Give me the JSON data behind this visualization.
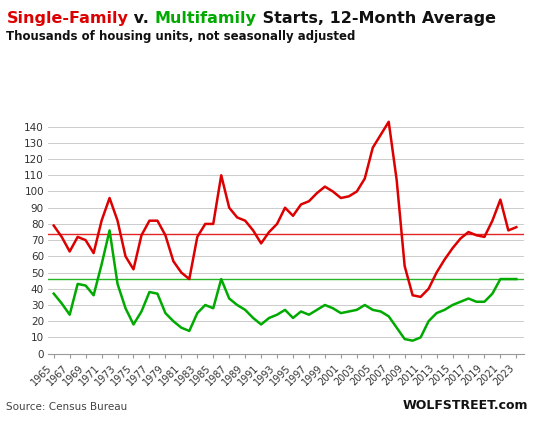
{
  "title_parts": [
    {
      "text": "Single-Family",
      "color": "#dd0000"
    },
    {
      "text": " v. ",
      "color": "#111111"
    },
    {
      "text": "Multifamily",
      "color": "#00aa00"
    },
    {
      "text": " Starts, 12-Month Average",
      "color": "#111111"
    }
  ],
  "subtitle": "Thousands of housing units, not seasonally adjusted",
  "source": "Source: Census Bureau",
  "watermark": "WOLFSTREET.com",
  "sf_color": "#dd0000",
  "mf_color": "#00aa00",
  "hline_sf_color": "#dd0000",
  "hline_mf_color": "#00aa00",
  "hline_sf_y": 74.0,
  "hline_mf_y": 46.0,
  "ylim": [
    0,
    148
  ],
  "yticks": [
    0,
    10,
    20,
    30,
    40,
    50,
    60,
    70,
    80,
    90,
    100,
    110,
    120,
    130,
    140
  ],
  "xlim": [
    1964.3,
    2024.0
  ],
  "years": [
    1965,
    1966,
    1967,
    1968,
    1969,
    1970,
    1971,
    1972,
    1973,
    1974,
    1975,
    1976,
    1977,
    1978,
    1979,
    1980,
    1981,
    1982,
    1983,
    1984,
    1985,
    1986,
    1987,
    1988,
    1989,
    1990,
    1991,
    1992,
    1993,
    1994,
    1995,
    1996,
    1997,
    1998,
    1999,
    2000,
    2001,
    2002,
    2003,
    2004,
    2005,
    2006,
    2007,
    2008,
    2009,
    2010,
    2011,
    2012,
    2013,
    2014,
    2015,
    2016,
    2017,
    2018,
    2019,
    2020,
    2021,
    2022,
    2023
  ],
  "single_family": [
    79,
    72,
    63,
    72,
    70,
    62,
    82,
    96,
    82,
    60,
    52,
    73,
    82,
    82,
    73,
    57,
    50,
    46,
    72,
    80,
    80,
    110,
    90,
    84,
    82,
    76,
    68,
    75,
    80,
    90,
    85,
    92,
    94,
    99,
    103,
    100,
    96,
    97,
    100,
    108,
    127,
    135,
    143,
    107,
    54,
    36,
    35,
    40,
    50,
    58,
    65,
    71,
    75,
    73,
    72,
    82,
    95,
    76,
    78
  ],
  "multifamily": [
    37,
    31,
    24,
    43,
    42,
    36,
    55,
    76,
    43,
    28,
    18,
    26,
    38,
    37,
    25,
    20,
    16,
    14,
    25,
    30,
    28,
    46,
    34,
    30,
    27,
    22,
    18,
    22,
    24,
    27,
    22,
    26,
    24,
    27,
    30,
    28,
    25,
    26,
    27,
    30,
    27,
    26,
    23,
    16,
    9,
    8,
    10,
    20,
    25,
    27,
    30,
    32,
    34,
    32,
    32,
    37,
    46,
    46,
    46
  ],
  "bg_color": "#ffffff",
  "grid_color": "#cccccc",
  "tick_label_color": "#333333",
  "xtick_years": [
    1965,
    1967,
    1969,
    1971,
    1973,
    1975,
    1977,
    1979,
    1981,
    1983,
    1985,
    1987,
    1989,
    1991,
    1993,
    1995,
    1997,
    1999,
    2001,
    2003,
    2005,
    2007,
    2009,
    2011,
    2013,
    2015,
    2017,
    2019,
    2021,
    2023
  ]
}
